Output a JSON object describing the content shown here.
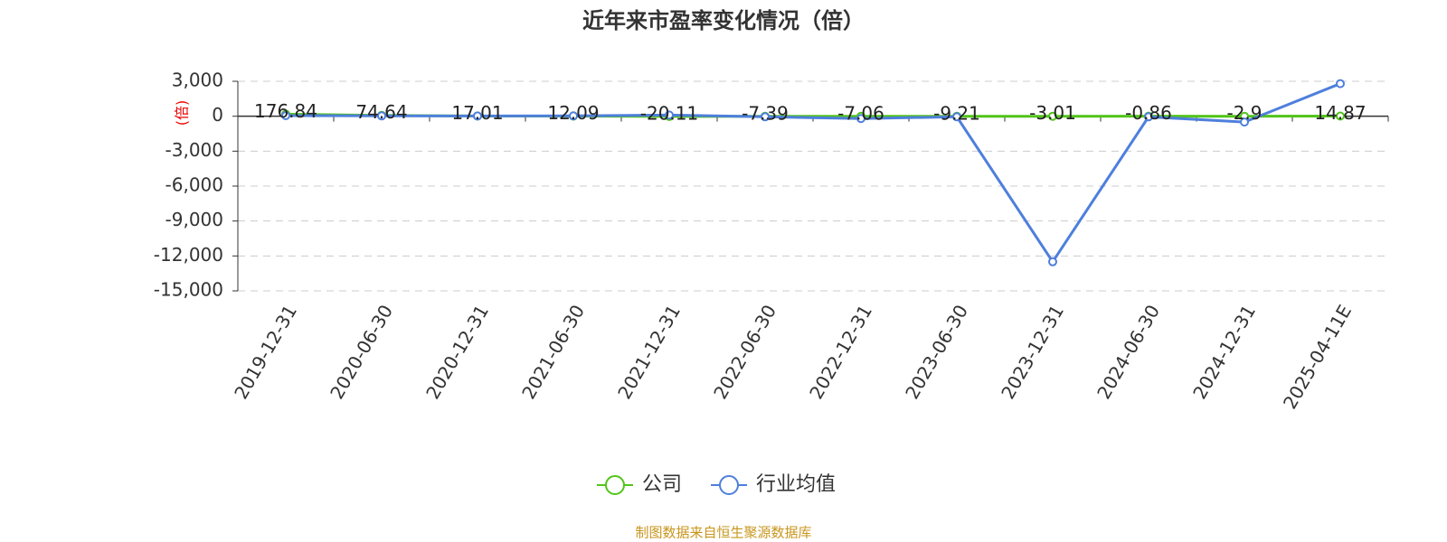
{
  "chart_data": {
    "type": "line",
    "title": "近年来市盈率变化情况（倍）",
    "y_label": "(倍)",
    "source": "制图数据来自恒生聚源数据库",
    "categories": [
      "2019-12-31",
      "2020-06-30",
      "2020-12-31",
      "2021-06-30",
      "2021-12-31",
      "2022-06-30",
      "2022-12-31",
      "2023-06-30",
      "2023-12-31",
      "2024-06-30",
      "2024-12-31",
      "2025-04-11E"
    ],
    "series": [
      {
        "name": "公司",
        "color": "#52c41a",
        "values": [
          176.84,
          74.64,
          17.01,
          12.09,
          -20.11,
          -7.39,
          -7.06,
          -9.21,
          -3.01,
          -0.86,
          -2.9,
          14.87
        ]
      },
      {
        "name": "行业均值",
        "color": "#4e7fdc",
        "values": [
          50,
          30,
          20,
          30,
          100,
          -50,
          -200,
          -50,
          -12500,
          -50,
          -500,
          2800
        ]
      }
    ],
    "ylim": [
      -15000,
      3000
    ],
    "yticks": [
      {
        "value": 3000,
        "label": "3,000"
      },
      0,
      {
        "value": -3000,
        "label": "-3,000"
      },
      {
        "value": -6000,
        "label": "-6,000"
      },
      {
        "value": -9000,
        "label": "-9,000"
      },
      {
        "value": -12000,
        "label": "-12,000"
      },
      {
        "value": -15000,
        "label": "-15,000"
      }
    ],
    "grid": true
  }
}
